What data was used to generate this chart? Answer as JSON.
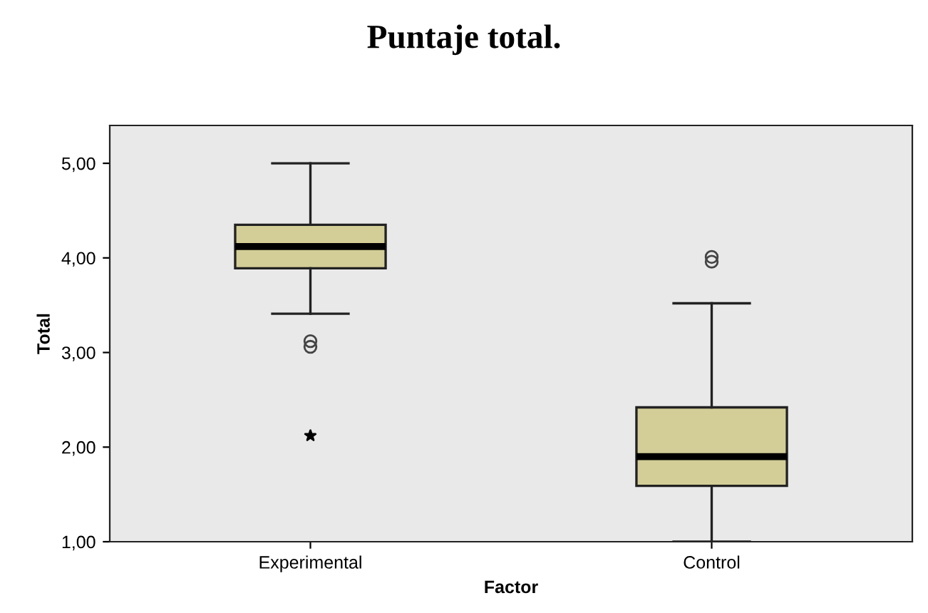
{
  "chart_data": {
    "type": "box",
    "title": "Puntaje total.",
    "xlabel": "Factor",
    "ylabel": "Total",
    "categories": [
      "Experimental",
      "Control"
    ],
    "boxes": [
      {
        "low": 3.41,
        "q1": 3.89,
        "median": 4.12,
        "q3": 4.35,
        "high": 5.0,
        "outliers": [
          3.06,
          3.12
        ]
      },
      {
        "low": 1.0,
        "q1": 1.59,
        "median": 1.9,
        "q3": 2.42,
        "high": 3.52,
        "outliers": [
          3.96,
          4.01
        ]
      }
    ],
    "color": "#d3ce97",
    "series": [
      {
        "type": "scatter",
        "marker": "star",
        "x": [
          "Experimental"
        ],
        "values": [
          2.12
        ],
        "color": "#000000"
      }
    ],
    "ylim": [
      1.0,
      5.4
    ],
    "yticks": [
      {
        "value": 1,
        "label": "1,00"
      },
      {
        "value": 2,
        "label": "2,00"
      },
      {
        "value": 3,
        "label": "3,00"
      },
      {
        "value": 4,
        "label": "4,00"
      },
      {
        "value": 5,
        "label": "5,00"
      }
    ],
    "grid": false,
    "legend": false
  }
}
